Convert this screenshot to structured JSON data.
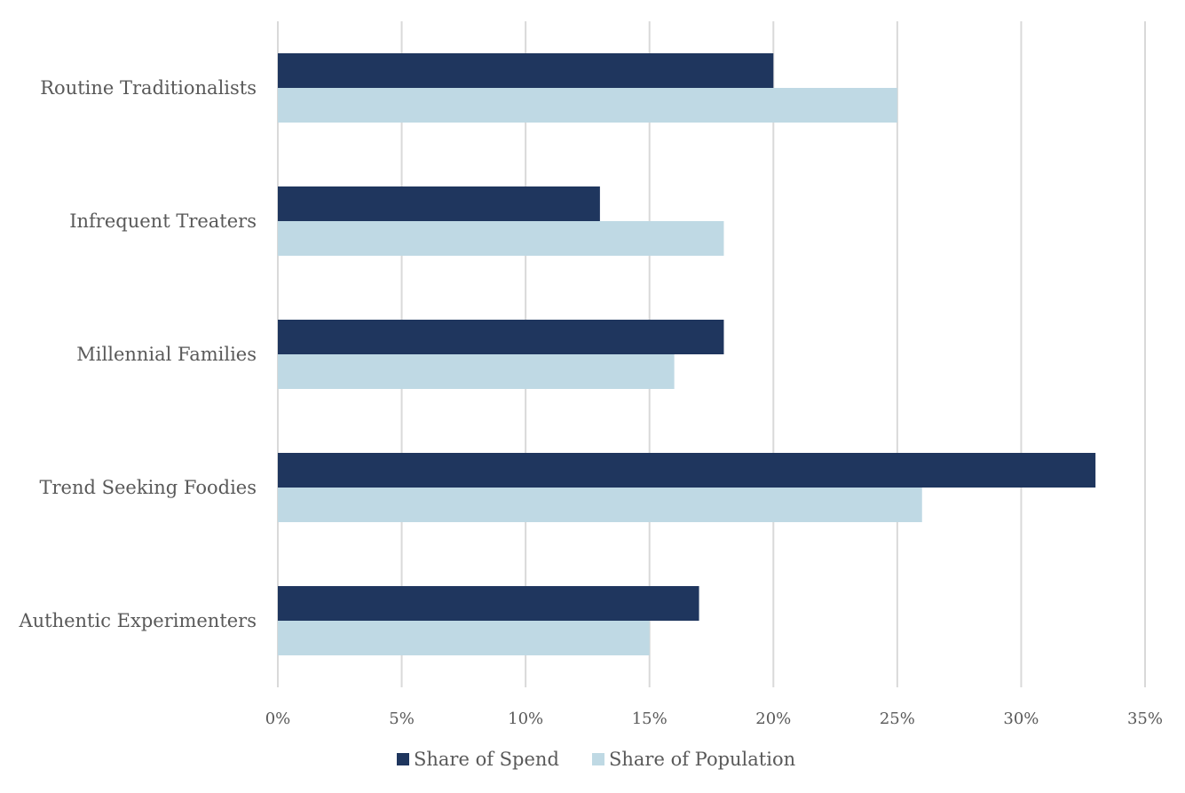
{
  "chart_data": {
    "type": "bar",
    "orientation": "horizontal",
    "title": "",
    "xlabel": "",
    "ylabel": "",
    "categories": [
      "Routine Traditionalists",
      "Infrequent Treaters",
      "Millennial Families",
      "Trend Seeking Foodies",
      "Authentic Experimenters"
    ],
    "series": [
      {
        "name": "Share of Spend",
        "color": "#1f365e",
        "values": [
          20,
          13,
          18,
          33,
          17
        ]
      },
      {
        "name": "Share of Population",
        "color": "#bfd9e4",
        "values": [
          25,
          18,
          16,
          26,
          15
        ]
      }
    ],
    "xlim": [
      0,
      35
    ],
    "x_ticks": [
      "0%",
      "5%",
      "10%",
      "15%",
      "20%",
      "25%",
      "30%",
      "35%"
    ],
    "x_tick_values": [
      0,
      5,
      10,
      15,
      20,
      25,
      30,
      35
    ],
    "grid": "vertical",
    "legend": "bottom"
  }
}
